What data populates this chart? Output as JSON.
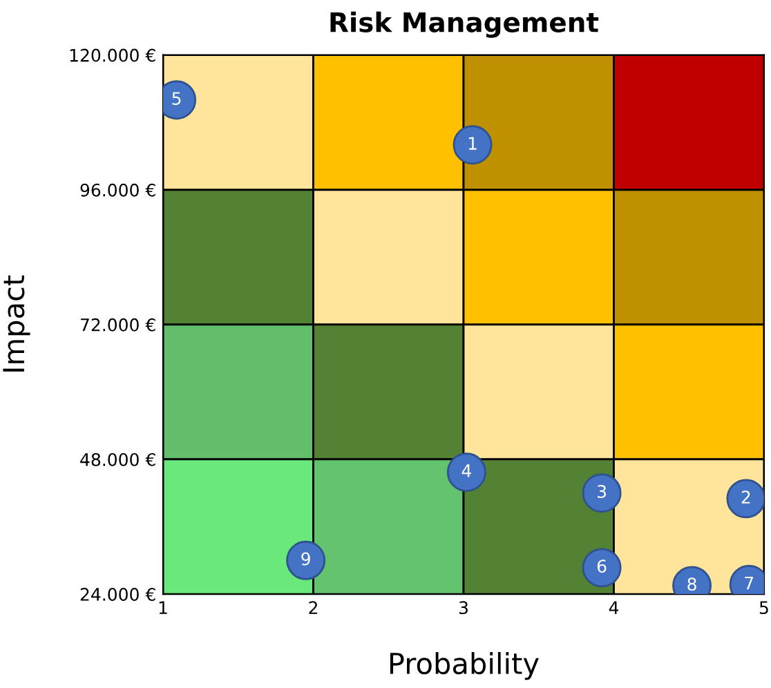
{
  "chart_data": {
    "type": "scatter",
    "title": "Risk Management",
    "xlabel": "Probability",
    "ylabel": "Impact",
    "x": [
      3.06,
      4.88,
      3.92,
      3.02,
      1.09,
      3.92,
      4.9,
      4.52,
      1.95
    ],
    "values": [
      104000,
      41000,
      42000,
      45700,
      112000,
      28700,
      25700,
      25500,
      30000
    ],
    "annotations": [
      {
        "text": "1",
        "x": 3.06,
        "y": 104000
      },
      {
        "text": "2",
        "x": 4.88,
        "y": 41000
      },
      {
        "text": "3",
        "x": 3.92,
        "y": 42000
      },
      {
        "text": "4",
        "x": 3.02,
        "y": 45700
      },
      {
        "text": "5",
        "x": 1.09,
        "y": 112000
      },
      {
        "text": "6",
        "x": 3.92,
        "y": 28700
      },
      {
        "text": "7",
        "x": 4.9,
        "y": 25700
      },
      {
        "text": "8",
        "x": 4.52,
        "y": 25500
      },
      {
        "text": "9",
        "x": 1.95,
        "y": 30000
      }
    ],
    "color": "#4472c4",
    "marker": "circle",
    "xlim": [
      1,
      5
    ],
    "xticks": [
      1,
      2,
      3,
      4,
      5
    ],
    "ylim": [
      24000,
      120000
    ],
    "yticks": [
      {
        "value": 24000,
        "label": "24.000 €"
      },
      {
        "value": 48000,
        "label": "48.000 €"
      },
      {
        "value": 72000,
        "label": "72.000 €"
      },
      {
        "value": 96000,
        "label": "96.000 €"
      },
      {
        "value": 120000,
        "label": "120.000 €"
      }
    ],
    "grid": false,
    "legend": false
  }
}
